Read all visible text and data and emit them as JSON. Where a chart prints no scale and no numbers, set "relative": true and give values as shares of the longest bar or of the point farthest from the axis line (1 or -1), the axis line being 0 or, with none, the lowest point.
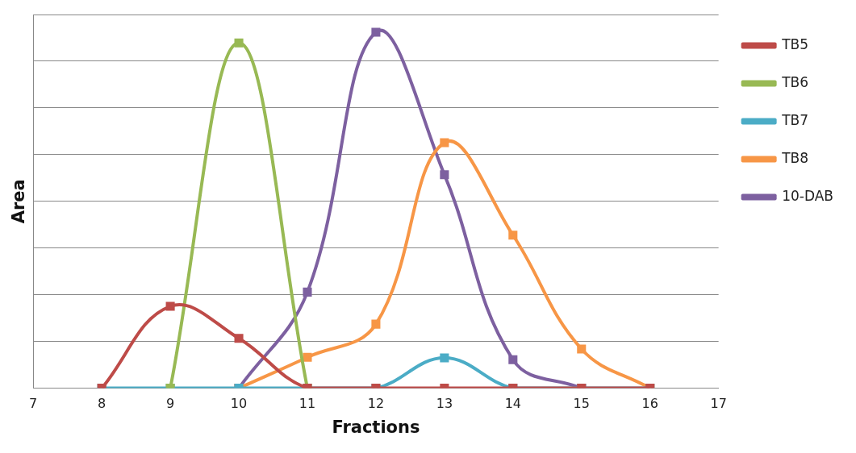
{
  "chart_data": {
    "type": "line",
    "xlabel": "Fractions",
    "ylabel": "Area",
    "relative": true,
    "xlim": [
      7,
      17
    ],
    "xticks": [
      7,
      8,
      9,
      10,
      11,
      12,
      13,
      14,
      15,
      16,
      17
    ],
    "grid": "y",
    "legend": "top right",
    "marker": "square",
    "line_style": "solid",
    "series": [
      {
        "name": "TB5",
        "color": "#be4b48",
        "x": [
          8,
          9,
          10,
          11,
          12,
          13,
          14,
          15,
          16
        ],
        "values": [
          0,
          0.23,
          0.14,
          0,
          0,
          0,
          0,
          0,
          0
        ]
      },
      {
        "name": "TB6",
        "color": "#98b954",
        "x": [
          9,
          10,
          11
        ],
        "values": [
          0,
          0.97,
          0
        ]
      },
      {
        "name": "TB7",
        "color": "#4bacc6",
        "x": [
          8,
          9,
          10,
          11,
          12,
          13,
          14,
          15,
          16
        ],
        "values": [
          0,
          0,
          0,
          0,
          0,
          0.085,
          0,
          0,
          0
        ]
      },
      {
        "name": "TB8",
        "color": "#f79646",
        "x": [
          10,
          11,
          12,
          13,
          14,
          15,
          16
        ],
        "values": [
          0,
          0.087,
          0.18,
          0.69,
          0.43,
          0.11,
          0
        ]
      },
      {
        "name": "10-DAB",
        "color": "#7d60a0",
        "x": [
          10,
          11,
          12,
          13,
          14,
          15
        ],
        "values": [
          0,
          0.27,
          1,
          0.6,
          0.08,
          0
        ]
      }
    ]
  }
}
